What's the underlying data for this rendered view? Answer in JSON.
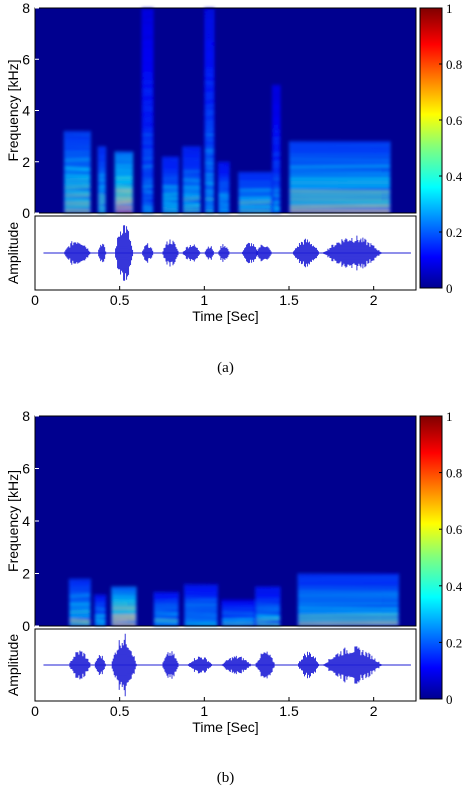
{
  "chart_data": [
    {
      "type": "heatmap",
      "panel_label": "(a)",
      "spectrogram": {
        "ylabel": "Frequency [kHz]",
        "yticks": [
          "0",
          "2",
          "4",
          "6",
          "8"
        ],
        "ylim": [
          0,
          8
        ],
        "xlim": [
          0,
          2.25
        ],
        "colorscale": "jet",
        "energy_regions": [
          {
            "t": [
              0.17,
              0.33
            ],
            "f": [
              0.0,
              3.2
            ],
            "level": 0.6
          },
          {
            "t": [
              0.37,
              0.42
            ],
            "f": [
              0.0,
              2.6
            ],
            "level": 0.55
          },
          {
            "t": [
              0.47,
              0.58
            ],
            "f": [
              0.0,
              2.4
            ],
            "level": 0.8
          },
          {
            "t": [
              0.63,
              0.7
            ],
            "f": [
              0.0,
              8.0
            ],
            "level": 0.35
          },
          {
            "t": [
              0.75,
              0.85
            ],
            "f": [
              0.0,
              2.2
            ],
            "level": 0.5
          },
          {
            "t": [
              0.87,
              0.98
            ],
            "f": [
              0.0,
              2.6
            ],
            "level": 0.5
          },
          {
            "t": [
              1.0,
              1.06
            ],
            "f": [
              0.0,
              8.0
            ],
            "level": 0.4
          },
          {
            "t": [
              1.08,
              1.15
            ],
            "f": [
              0.0,
              2.0
            ],
            "level": 0.45
          },
          {
            "t": [
              1.2,
              1.4
            ],
            "f": [
              0.0,
              1.6
            ],
            "level": 0.55
          },
          {
            "t": [
              1.4,
              1.45
            ],
            "f": [
              0.0,
              5.0
            ],
            "level": 0.35
          },
          {
            "t": [
              1.5,
              2.1
            ],
            "f": [
              0.0,
              2.8
            ],
            "level": 0.6
          }
        ]
      },
      "waveform": {
        "ylabel": "Amplitude",
        "segments": [
          {
            "t": [
              0.17,
              0.33
            ],
            "amp": 0.45
          },
          {
            "t": [
              0.37,
              0.42
            ],
            "amp": 0.35
          },
          {
            "t": [
              0.47,
              0.58
            ],
            "amp": 1.0
          },
          {
            "t": [
              0.63,
              0.7
            ],
            "amp": 0.3
          },
          {
            "t": [
              0.75,
              0.85
            ],
            "amp": 0.45
          },
          {
            "t": [
              0.87,
              0.98
            ],
            "amp": 0.3
          },
          {
            "t": [
              1.0,
              1.06
            ],
            "amp": 0.25
          },
          {
            "t": [
              1.08,
              1.15
            ],
            "amp": 0.3
          },
          {
            "t": [
              1.22,
              1.32
            ],
            "amp": 0.35
          },
          {
            "t": [
              1.3,
              1.4
            ],
            "amp": 0.3
          },
          {
            "t": [
              1.52,
              1.68
            ],
            "amp": 0.45
          },
          {
            "t": [
              1.7,
              2.05
            ],
            "amp": 0.55
          }
        ]
      },
      "xlabel": "Time [Sec]",
      "xticks": [
        "0",
        "0.5",
        "1",
        "1.5",
        "2"
      ],
      "colorbar": {
        "ticks": [
          "0",
          "0.2",
          "0.4",
          "0.6",
          "0.8",
          "1"
        ],
        "range": [
          0,
          1
        ]
      }
    },
    {
      "type": "heatmap",
      "panel_label": "(b)",
      "spectrogram": {
        "ylabel": "Frequency [kHz]",
        "yticks": [
          "0",
          "2",
          "4",
          "6",
          "8"
        ],
        "ylim": [
          0,
          8
        ],
        "xlim": [
          0,
          2.25
        ],
        "colorscale": "jet",
        "energy_regions": [
          {
            "t": [
              0.2,
              0.33
            ],
            "f": [
              0.0,
              1.8
            ],
            "level": 0.55
          },
          {
            "t": [
              0.35,
              0.42
            ],
            "f": [
              0.0,
              1.2
            ],
            "level": 0.45
          },
          {
            "t": [
              0.45,
              0.6
            ],
            "f": [
              0.0,
              1.5
            ],
            "level": 0.75
          },
          {
            "t": [
              0.7,
              0.85
            ],
            "f": [
              0.0,
              1.3
            ],
            "level": 0.45
          },
          {
            "t": [
              0.88,
              1.08
            ],
            "f": [
              0.0,
              1.6
            ],
            "level": 0.45
          },
          {
            "t": [
              1.1,
              1.3
            ],
            "f": [
              0.0,
              1.0
            ],
            "level": 0.4
          },
          {
            "t": [
              1.3,
              1.45
            ],
            "f": [
              0.0,
              1.5
            ],
            "level": 0.45
          },
          {
            "t": [
              1.55,
              2.15
            ],
            "f": [
              0.0,
              2.0
            ],
            "level": 0.55
          }
        ]
      },
      "waveform": {
        "ylabel": "Amplitude",
        "segments": [
          {
            "t": [
              0.2,
              0.33
            ],
            "amp": 0.5
          },
          {
            "t": [
              0.35,
              0.42
            ],
            "amp": 0.35
          },
          {
            "t": [
              0.45,
              0.6
            ],
            "amp": 1.0
          },
          {
            "t": [
              0.75,
              0.85
            ],
            "amp": 0.45
          },
          {
            "t": [
              0.9,
              1.05
            ],
            "amp": 0.3
          },
          {
            "t": [
              1.1,
              1.28
            ],
            "amp": 0.3
          },
          {
            "t": [
              1.3,
              1.42
            ],
            "amp": 0.45
          },
          {
            "t": [
              1.55,
              1.68
            ],
            "amp": 0.45
          },
          {
            "t": [
              1.7,
              2.05
            ],
            "amp": 0.6
          }
        ]
      },
      "xlabel": "Time [Sec]",
      "xticks": [
        "0",
        "0.5",
        "1",
        "1.5",
        "2"
      ],
      "colorbar": {
        "ticks": [
          "0",
          "0.2",
          "0.4",
          "0.6",
          "0.8",
          "1"
        ],
        "range": [
          0,
          1
        ]
      }
    }
  ],
  "colors": {
    "background_low": "#00008f",
    "waveform": "#1f1fd6",
    "axis": "#000000"
  }
}
